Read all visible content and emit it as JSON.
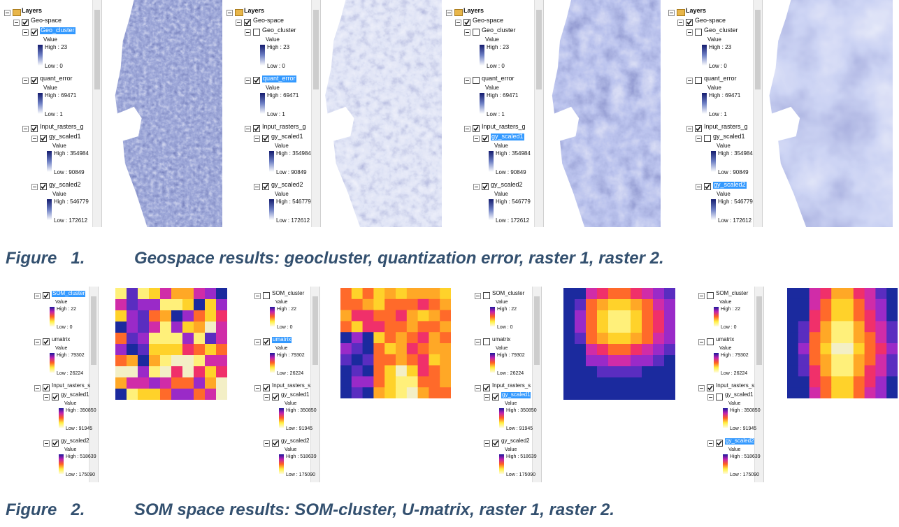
{
  "figure_1": {
    "panels": [
      {
        "root": "Layers",
        "items": [
          {
            "name": "Geo-space",
            "checked": true,
            "children": [
              {
                "name": "Geo_cluster",
                "checked": true,
                "selected": true,
                "legend": {
                  "title": "Value",
                  "high": "High : 23",
                  "low": "Low : 0"
                }
              },
              {
                "name": "quant_error",
                "checked": true,
                "legend": {
                  "title": "Value",
                  "high": "High : 69471",
                  "low": "Low : 1"
                }
              },
              {
                "name": "Input_rasters_g",
                "checked": true,
                "children": [
                  {
                    "name": "gy_scaled1",
                    "checked": true,
                    "legend": {
                      "title": "Value",
                      "high": "High : 354984",
                      "low": "Low : 90849"
                    }
                  },
                  {
                    "name": "gy_scaled2",
                    "checked": true,
                    "legend": {
                      "title": "Value",
                      "high": "High : 546779",
                      "low": "Low : 172612"
                    }
                  }
                ]
              }
            ]
          }
        ]
      },
      {
        "root": "Layers",
        "items": [
          {
            "name": "Geo-space",
            "checked": true,
            "children": [
              {
                "name": "Geo_cluster",
                "checked": false,
                "legend": {
                  "title": "Value",
                  "high": "High : 23",
                  "low": "Low : 0"
                }
              },
              {
                "name": "quant_error",
                "checked": true,
                "selected": true,
                "legend": {
                  "title": "Value",
                  "high": "High : 69471",
                  "low": "Low : 1"
                }
              },
              {
                "name": "Input_rasters_g",
                "checked": true,
                "children": [
                  {
                    "name": "gy_scaled1",
                    "checked": true,
                    "legend": {
                      "title": "Value",
                      "high": "High : 354984",
                      "low": "Low : 90849"
                    }
                  },
                  {
                    "name": "gy_scaled2",
                    "checked": true,
                    "legend": {
                      "title": "Value",
                      "high": "High : 546779",
                      "low": "Low : 172612"
                    }
                  }
                ]
              }
            ]
          }
        ]
      },
      {
        "root": "Layers",
        "items": [
          {
            "name": "Geo-space",
            "checked": true,
            "children": [
              {
                "name": "Geo_cluster",
                "checked": false,
                "legend": {
                  "title": "Value",
                  "high": "High : 23",
                  "low": "Low : 0"
                }
              },
              {
                "name": "quant_error",
                "checked": false,
                "legend": {
                  "title": "Value",
                  "high": "High : 69471",
                  "low": "Low : 1"
                }
              },
              {
                "name": "Input_rasters_g",
                "checked": true,
                "children": [
                  {
                    "name": "gy_scaled1",
                    "checked": true,
                    "selected": true,
                    "legend": {
                      "title": "Value",
                      "high": "High : 354984",
                      "low": "Low : 90849"
                    }
                  },
                  {
                    "name": "gy_scaled2",
                    "checked": true,
                    "legend": {
                      "title": "Value",
                      "high": "High : 546779",
                      "low": "Low : 172612"
                    }
                  }
                ]
              }
            ]
          }
        ]
      },
      {
        "root": "Layers",
        "items": [
          {
            "name": "Geo-space",
            "checked": true,
            "children": [
              {
                "name": "Geo_cluster",
                "checked": false,
                "legend": {
                  "title": "Value",
                  "high": "High : 23",
                  "low": "Low : 0"
                }
              },
              {
                "name": "quant_error",
                "checked": false,
                "legend": {
                  "title": "Value",
                  "high": "High : 69471",
                  "low": "Low : 1"
                }
              },
              {
                "name": "Input_rasters_g",
                "checked": true,
                "children": [
                  {
                    "name": "gy_scaled1",
                    "checked": false,
                    "legend": {
                      "title": "Value",
                      "high": "High : 354984",
                      "low": "Low : 90849"
                    }
                  },
                  {
                    "name": "gy_scaled2",
                    "checked": true,
                    "selected": true,
                    "legend": {
                      "title": "Value",
                      "high": "High : 546779",
                      "low": "Low : 172612"
                    }
                  }
                ]
              }
            ]
          }
        ]
      }
    ],
    "caption": {
      "label": "Figure   1.",
      "text": "Geospace results: geocluster, quantization error, raster 1, raster 2."
    }
  },
  "figure_2": {
    "panels": [
      {
        "items": [
          {
            "name": "SOM_cluster",
            "checked": true,
            "selected": true,
            "legend": {
              "title": "Value",
              "high": "High : 22",
              "low": "Low : 0"
            }
          },
          {
            "name": "umatrix",
            "checked": true,
            "legend": {
              "title": "Value",
              "high": "High : 79302",
              "low": "Low : 26224"
            }
          },
          {
            "name": "Input_rasters_s",
            "checked": true,
            "children": [
              {
                "name": "gy_scaled1",
                "checked": true,
                "legend": {
                  "title": "Value",
                  "high": "High : 350850",
                  "low": "Low : 91945"
                }
              },
              {
                "name": "gy_scaled2",
                "checked": true,
                "legend": {
                  "title": "Value",
                  "high": "High : 518639",
                  "low": "Low : 175090"
                }
              }
            ]
          }
        ]
      },
      {
        "items": [
          {
            "name": "SOM_cluster",
            "checked": false,
            "legend": {
              "title": "Value",
              "high": "High : 22",
              "low": "Low : 0"
            }
          },
          {
            "name": "umatrix",
            "checked": true,
            "selected": true,
            "legend": {
              "title": "Value",
              "high": "High : 79302",
              "low": "Low : 26224"
            }
          },
          {
            "name": "Input_rasters_s",
            "checked": true,
            "children": [
              {
                "name": "gy_scaled1",
                "checked": true,
                "legend": {
                  "title": "Value",
                  "high": "High : 350850",
                  "low": "Low : 91945"
                }
              },
              {
                "name": "gy_scaled2",
                "checked": true,
                "legend": {
                  "title": "Value",
                  "high": "High : 518639",
                  "low": "Low : 175090"
                }
              }
            ]
          }
        ]
      },
      {
        "items": [
          {
            "name": "SOM_cluster",
            "checked": false,
            "legend": {
              "title": "Value",
              "high": "High : 22",
              "low": "Low : 0"
            }
          },
          {
            "name": "umatrix",
            "checked": false,
            "legend": {
              "title": "Value",
              "high": "High : 79302",
              "low": "Low : 26224"
            }
          },
          {
            "name": "Input_rasters_s",
            "checked": true,
            "children": [
              {
                "name": "gy_scaled1",
                "checked": true,
                "selected": true,
                "legend": {
                  "title": "Value",
                  "high": "High : 350850",
                  "low": "Low : 91945"
                }
              },
              {
                "name": "gy_scaled2",
                "checked": true,
                "legend": {
                  "title": "Value",
                  "high": "High : 518639",
                  "low": "Low : 175090"
                }
              }
            ]
          }
        ]
      },
      {
        "items": [
          {
            "name": "SOM_cluster",
            "checked": false,
            "legend": {
              "title": "Value",
              "high": "High : 22",
              "low": "Low : 0"
            }
          },
          {
            "name": "umatrix",
            "checked": false,
            "legend": {
              "title": "Value",
              "high": "High : 79302",
              "low": "Low : 26224"
            }
          },
          {
            "name": "Input_rasters_s",
            "checked": true,
            "children": [
              {
                "name": "gy_scaled1",
                "checked": false,
                "legend": {
                  "title": "Value",
                  "high": "High : 350850",
                  "low": "Low : 91945"
                }
              },
              {
                "name": "gy_scaled2",
                "checked": true,
                "selected": true,
                "legend": {
                  "title": "Value",
                  "high": "High : 518639",
                  "low": "Low : 175090"
                }
              }
            ]
          }
        ]
      }
    ],
    "caption": {
      "label": "Figure   2.",
      "text": "SOM space results: SOM-cluster, U-matrix, raster 1, raster 2."
    }
  }
}
